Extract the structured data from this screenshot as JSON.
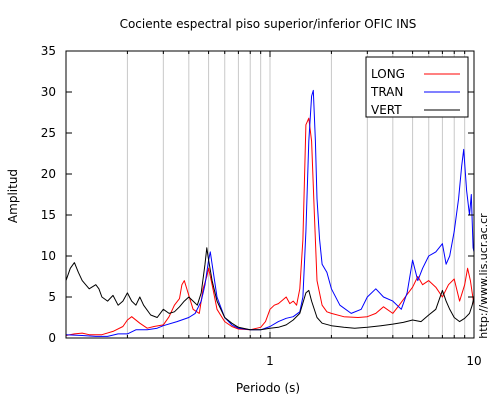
{
  "chart_data": {
    "type": "line",
    "title": "Cociente espectral piso superior/inferior  OFIC INS",
    "xlabel": "Periodo (s)",
    "ylabel": "Amplitud",
    "x_scale": "log",
    "xlim": [
      0.1,
      10
    ],
    "ylim": [
      0,
      35
    ],
    "x_tick_labels": [
      {
        "value": 1,
        "label": "1"
      },
      {
        "value": 10,
        "label": "10"
      }
    ],
    "y_ticks": [
      0,
      5,
      10,
      15,
      20,
      25,
      30,
      35
    ],
    "grid": "vertical log minor lines",
    "legend_position": "top-right",
    "side_text": "http://www.lis.ucr.ac.cr",
    "series": [
      {
        "name": "LONG",
        "color": "#ff0000",
        "points": [
          [
            0.1,
            0.3
          ],
          [
            0.11,
            0.5
          ],
          [
            0.12,
            0.6
          ],
          [
            0.13,
            0.4
          ],
          [
            0.15,
            0.4
          ],
          [
            0.17,
            0.8
          ],
          [
            0.19,
            1.4
          ],
          [
            0.2,
            2.2
          ],
          [
            0.21,
            2.6
          ],
          [
            0.23,
            1.8
          ],
          [
            0.25,
            1.2
          ],
          [
            0.27,
            1.4
          ],
          [
            0.3,
            1.6
          ],
          [
            0.32,
            2.6
          ],
          [
            0.34,
            4.0
          ],
          [
            0.36,
            4.8
          ],
          [
            0.37,
            6.5
          ],
          [
            0.38,
            7.0
          ],
          [
            0.4,
            5.2
          ],
          [
            0.42,
            3.5
          ],
          [
            0.45,
            3.0
          ],
          [
            0.47,
            6.0
          ],
          [
            0.49,
            7.5
          ],
          [
            0.5,
            8.5
          ],
          [
            0.52,
            6.5
          ],
          [
            0.55,
            3.5
          ],
          [
            0.6,
            2.0
          ],
          [
            0.65,
            1.4
          ],
          [
            0.7,
            1.1
          ],
          [
            0.8,
            1.0
          ],
          [
            0.9,
            1.3
          ],
          [
            0.95,
            2.0
          ],
          [
            1.0,
            3.5
          ],
          [
            1.05,
            4.0
          ],
          [
            1.1,
            4.2
          ],
          [
            1.15,
            4.6
          ],
          [
            1.2,
            5.0
          ],
          [
            1.25,
            4.2
          ],
          [
            1.3,
            4.5
          ],
          [
            1.35,
            4.0
          ],
          [
            1.4,
            6.0
          ],
          [
            1.45,
            12.0
          ],
          [
            1.5,
            26.0
          ],
          [
            1.55,
            26.8
          ],
          [
            1.6,
            24.0
          ],
          [
            1.65,
            15.0
          ],
          [
            1.7,
            7.0
          ],
          [
            1.8,
            4.0
          ],
          [
            1.9,
            3.2
          ],
          [
            2.0,
            3.0
          ],
          [
            2.3,
            2.6
          ],
          [
            2.7,
            2.5
          ],
          [
            3.0,
            2.6
          ],
          [
            3.3,
            3.0
          ],
          [
            3.6,
            3.8
          ],
          [
            4.0,
            3.0
          ],
          [
            4.3,
            4.0
          ],
          [
            4.6,
            5.0
          ],
          [
            5.0,
            6.2
          ],
          [
            5.3,
            7.5
          ],
          [
            5.6,
            6.5
          ],
          [
            6.0,
            7.0
          ],
          [
            6.5,
            6.2
          ],
          [
            7.0,
            5.0
          ],
          [
            7.5,
            6.5
          ],
          [
            8.0,
            7.2
          ],
          [
            8.5,
            4.5
          ],
          [
            9.0,
            6.5
          ],
          [
            9.3,
            8.5
          ],
          [
            9.6,
            7.0
          ],
          [
            10,
            4.0
          ]
        ]
      },
      {
        "name": "TRAN",
        "color": "#0000ff",
        "points": [
          [
            0.1,
            0.4
          ],
          [
            0.12,
            0.3
          ],
          [
            0.14,
            0.2
          ],
          [
            0.16,
            0.2
          ],
          [
            0.18,
            0.5
          ],
          [
            0.2,
            0.5
          ],
          [
            0.22,
            1.0
          ],
          [
            0.25,
            1.0
          ],
          [
            0.28,
            1.2
          ],
          [
            0.3,
            1.5
          ],
          [
            0.35,
            2.0
          ],
          [
            0.4,
            2.5
          ],
          [
            0.43,
            3.0
          ],
          [
            0.46,
            4.5
          ],
          [
            0.48,
            6.5
          ],
          [
            0.5,
            9.5
          ],
          [
            0.51,
            10.5
          ],
          [
            0.52,
            9.0
          ],
          [
            0.55,
            5.0
          ],
          [
            0.6,
            2.5
          ],
          [
            0.65,
            1.6
          ],
          [
            0.7,
            1.2
          ],
          [
            0.8,
            1.0
          ],
          [
            0.9,
            1.0
          ],
          [
            1.0,
            1.4
          ],
          [
            1.1,
            2.0
          ],
          [
            1.2,
            2.4
          ],
          [
            1.3,
            2.6
          ],
          [
            1.4,
            3.2
          ],
          [
            1.45,
            5.0
          ],
          [
            1.5,
            13.0
          ],
          [
            1.55,
            24.0
          ],
          [
            1.6,
            29.5
          ],
          [
            1.63,
            30.2
          ],
          [
            1.67,
            24.0
          ],
          [
            1.7,
            17.0
          ],
          [
            1.75,
            12.0
          ],
          [
            1.8,
            9.0
          ],
          [
            1.9,
            8.0
          ],
          [
            2.0,
            6.0
          ],
          [
            2.2,
            4.0
          ],
          [
            2.5,
            3.0
          ],
          [
            2.8,
            3.5
          ],
          [
            3.0,
            5.0
          ],
          [
            3.3,
            6.0
          ],
          [
            3.6,
            5.0
          ],
          [
            4.0,
            4.5
          ],
          [
            4.4,
            3.5
          ],
          [
            4.7,
            5.5
          ],
          [
            5.0,
            9.5
          ],
          [
            5.3,
            7.0
          ],
          [
            5.6,
            8.5
          ],
          [
            6.0,
            10.0
          ],
          [
            6.5,
            10.5
          ],
          [
            7.0,
            11.5
          ],
          [
            7.3,
            9.0
          ],
          [
            7.6,
            10.0
          ],
          [
            8.0,
            13.0
          ],
          [
            8.4,
            17.0
          ],
          [
            8.7,
            21.0
          ],
          [
            8.9,
            23.0
          ],
          [
            9.2,
            18.0
          ],
          [
            9.5,
            15.0
          ],
          [
            9.7,
            17.5
          ],
          [
            9.9,
            11.0
          ],
          [
            10,
            10.5
          ]
        ]
      },
      {
        "name": "VERT",
        "color": "#000000",
        "points": [
          [
            0.1,
            7.0
          ],
          [
            0.105,
            8.5
          ],
          [
            0.11,
            9.2
          ],
          [
            0.115,
            8.0
          ],
          [
            0.12,
            7.0
          ],
          [
            0.13,
            6.0
          ],
          [
            0.14,
            6.5
          ],
          [
            0.145,
            6.0
          ],
          [
            0.15,
            5.0
          ],
          [
            0.16,
            4.5
          ],
          [
            0.17,
            5.2
          ],
          [
            0.18,
            4.0
          ],
          [
            0.19,
            4.5
          ],
          [
            0.2,
            5.5
          ],
          [
            0.21,
            4.5
          ],
          [
            0.22,
            4.0
          ],
          [
            0.23,
            5.0
          ],
          [
            0.24,
            4.0
          ],
          [
            0.26,
            2.8
          ],
          [
            0.28,
            2.5
          ],
          [
            0.3,
            3.5
          ],
          [
            0.32,
            3.0
          ],
          [
            0.34,
            3.2
          ],
          [
            0.36,
            3.8
          ],
          [
            0.38,
            4.5
          ],
          [
            0.4,
            5.0
          ],
          [
            0.42,
            4.5
          ],
          [
            0.44,
            4.0
          ],
          [
            0.46,
            5.5
          ],
          [
            0.48,
            9.0
          ],
          [
            0.49,
            11.0
          ],
          [
            0.5,
            9.5
          ],
          [
            0.52,
            7.0
          ],
          [
            0.55,
            4.5
          ],
          [
            0.6,
            2.5
          ],
          [
            0.65,
            1.8
          ],
          [
            0.7,
            1.3
          ],
          [
            0.8,
            1.0
          ],
          [
            0.9,
            1.0
          ],
          [
            1.0,
            1.2
          ],
          [
            1.1,
            1.3
          ],
          [
            1.2,
            1.6
          ],
          [
            1.3,
            2.2
          ],
          [
            1.4,
            3.0
          ],
          [
            1.5,
            5.5
          ],
          [
            1.55,
            5.8
          ],
          [
            1.6,
            4.5
          ],
          [
            1.7,
            2.5
          ],
          [
            1.8,
            1.8
          ],
          [
            2.0,
            1.5
          ],
          [
            2.3,
            1.3
          ],
          [
            2.6,
            1.2
          ],
          [
            3.0,
            1.3
          ],
          [
            3.5,
            1.5
          ],
          [
            4.0,
            1.7
          ],
          [
            4.5,
            1.9
          ],
          [
            5.0,
            2.2
          ],
          [
            5.5,
            2.0
          ],
          [
            6.0,
            2.8
          ],
          [
            6.5,
            3.5
          ],
          [
            7.0,
            5.8
          ],
          [
            7.3,
            4.5
          ],
          [
            7.6,
            3.5
          ],
          [
            8.0,
            2.5
          ],
          [
            8.5,
            2.0
          ],
          [
            9.0,
            2.4
          ],
          [
            9.5,
            3.0
          ],
          [
            9.8,
            4.0
          ],
          [
            10,
            5.0
          ]
        ]
      }
    ]
  }
}
